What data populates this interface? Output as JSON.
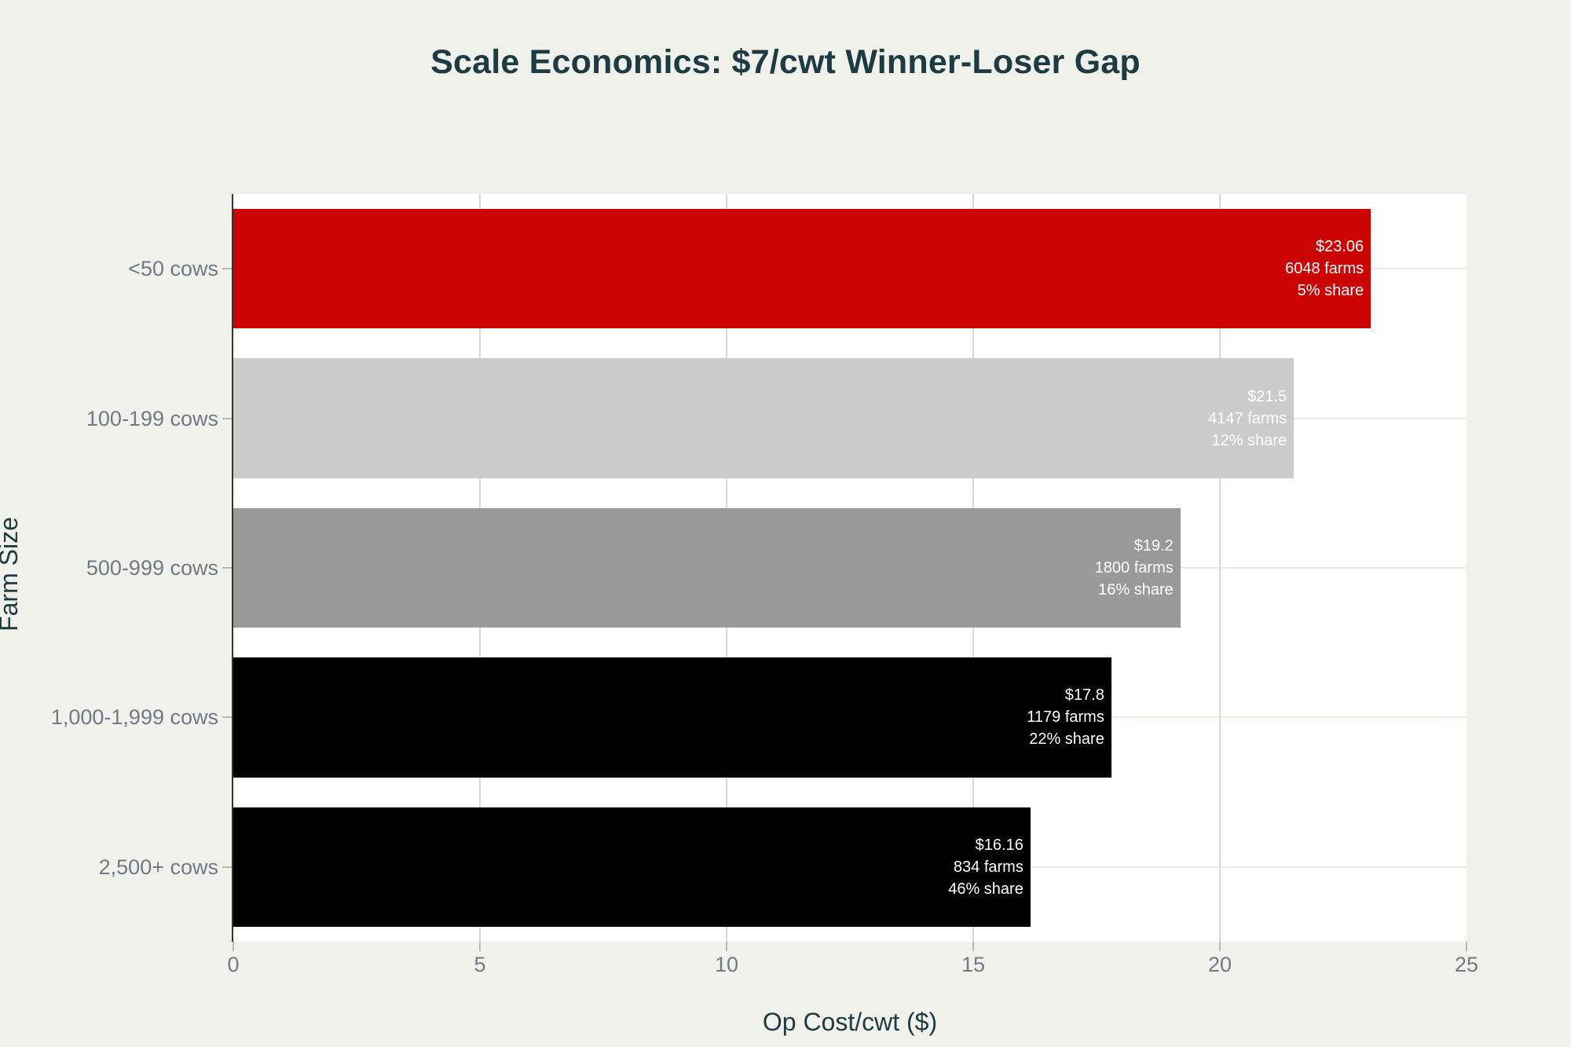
{
  "chart_data": {
    "type": "bar",
    "orientation": "horizontal",
    "title": "Scale Economics: $7/cwt Winner-Loser Gap",
    "xlabel": "Op Cost/cwt ($)",
    "ylabel": "Farm Size",
    "xlim": [
      0,
      25
    ],
    "x_ticks": [
      0,
      5,
      10,
      15,
      20,
      25
    ],
    "grid": true,
    "legend": "none",
    "categories": [
      "<50 cows",
      "100-199 cows",
      "500-999 cows",
      "1,000-1,999 cows",
      "2,500+ cows"
    ],
    "series": [
      {
        "name": "Op Cost/cwt ($)",
        "values": [
          23.06,
          21.5,
          19.2,
          17.8,
          16.16
        ]
      }
    ],
    "bars": [
      {
        "category": "<50 cows",
        "value": 23.06,
        "farms": 6048,
        "share_pct": 5,
        "color": "#cc0303",
        "label_lines": [
          "$23.06",
          "6048 farms",
          "5% share"
        ]
      },
      {
        "category": "100-199 cows",
        "value": 21.5,
        "farms": 4147,
        "share_pct": 12,
        "color": "#cbcbcb",
        "label_lines": [
          "$21.5",
          "4147 farms",
          "12% share"
        ]
      },
      {
        "category": "500-999 cows",
        "value": 19.2,
        "farms": 1800,
        "share_pct": 16,
        "color": "#999999",
        "label_lines": [
          "$19.2",
          "1800 farms",
          "16% share"
        ]
      },
      {
        "category": "1,000-1,999 cows",
        "value": 17.8,
        "farms": 1179,
        "share_pct": 22,
        "color": "#000000",
        "label_lines": [
          "$17.8",
          "1179 farms",
          "22% share"
        ]
      },
      {
        "category": "2,500+ cows",
        "value": 16.16,
        "farms": 834,
        "share_pct": 46,
        "color": "#000000",
        "label_lines": [
          "$16.16",
          "834 farms",
          "46% share"
        ]
      }
    ],
    "colors": {
      "title_text": "#1c3b43",
      "axis_title_text": "#1c3b43",
      "tick_text": "#6f7a86",
      "plot_background": "#ffffff",
      "page_background": "#f1f1eb",
      "grid_horizontal": "#edece5",
      "grid_vertical": "#d9d9d4",
      "axis_line": "#333333",
      "tick_mark": "#b9b9b2",
      "bar_label_text": "#ffffff"
    }
  }
}
